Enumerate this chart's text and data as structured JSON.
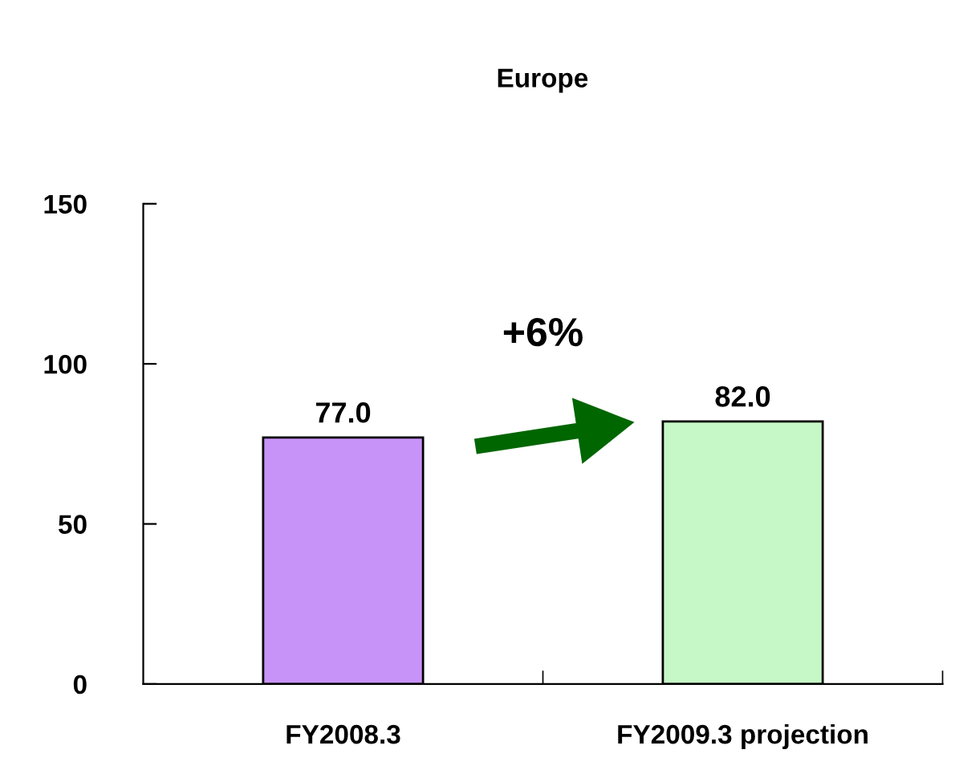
{
  "chart_data": {
    "type": "bar",
    "title": "Europe",
    "categories": [
      "FY2008.3",
      "FY2009.3 projection"
    ],
    "values": [
      77.0,
      82.0
    ],
    "value_labels": [
      "77.0",
      "82.0"
    ],
    "colors": [
      "#c893f8",
      "#c6f7c6"
    ],
    "ylim": [
      0,
      150
    ],
    "yticks": [
      0,
      50,
      100,
      150
    ],
    "grid": false,
    "legend": false,
    "annotations": [
      "+6%"
    ]
  }
}
